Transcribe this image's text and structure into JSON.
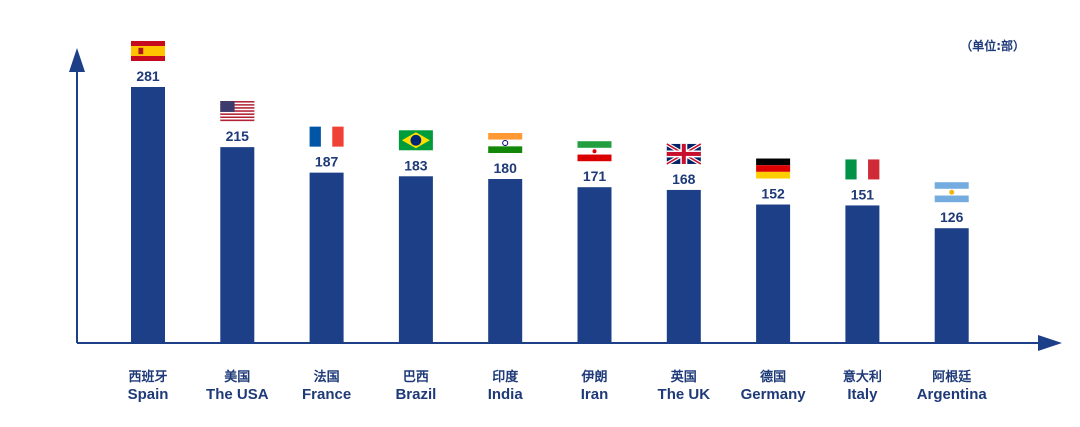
{
  "chart_data": {
    "type": "bar",
    "unit_label": "（单位:部）",
    "categories_zh": [
      "西班牙",
      "美国",
      "法国",
      "巴西",
      "印度",
      "伊朗",
      "英国",
      "德国",
      "意大利",
      "阿根廷"
    ],
    "categories": [
      "Spain",
      "The USA",
      "France",
      "Brazil",
      "India",
      "Iran",
      "The UK",
      "Germany",
      "Italy",
      "Argentina"
    ],
    "values": [
      281,
      215,
      187,
      183,
      180,
      171,
      168,
      152,
      151,
      126
    ],
    "flags": [
      "spain-flag",
      "usa-flag",
      "france-flag",
      "brazil-flag",
      "india-flag",
      "iran-flag",
      "uk-flag",
      "germany-flag",
      "italy-flag",
      "argentina-flag"
    ],
    "ylim": [
      0,
      281
    ],
    "bar_color": "#1d3f87",
    "axis_color": "#1d3f87",
    "grid": false
  }
}
